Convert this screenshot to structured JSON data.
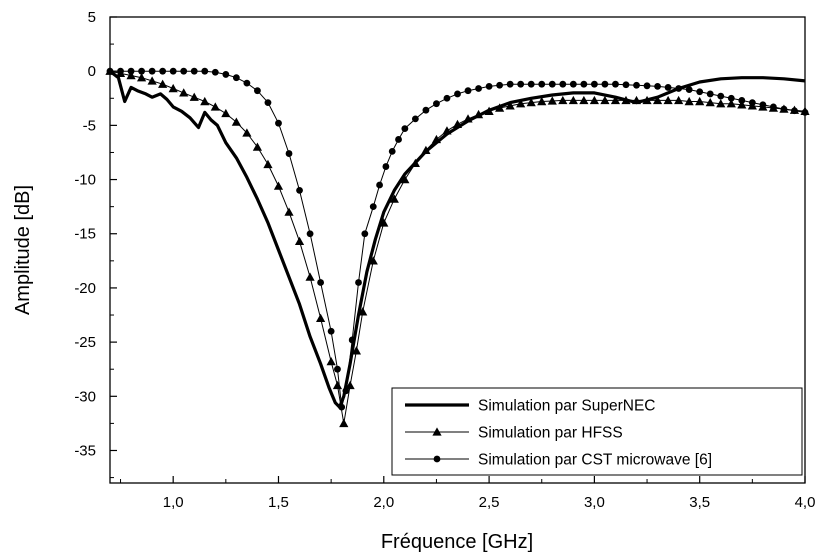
{
  "chart_data": {
    "type": "line",
    "title": "",
    "xlabel": "Fréquence [GHz]",
    "ylabel": "Amplitude [dB]",
    "xlim": [
      0.7,
      4.0
    ],
    "ylim": [
      -38,
      5
    ],
    "x_ticks": [
      1.0,
      1.5,
      2.0,
      2.5,
      3.0,
      3.5,
      4.0
    ],
    "x_tick_labels": [
      "1,0",
      "1,5",
      "2,0",
      "2,5",
      "3,0",
      "3,5",
      "4,0"
    ],
    "y_ticks": [
      5,
      0,
      -5,
      -10,
      -15,
      -20,
      -25,
      -30,
      -35
    ],
    "y_tick_labels": [
      "5",
      "0",
      "-5",
      "-10",
      "-15",
      "-20",
      "-25",
      "-30",
      "-35"
    ],
    "grid": false,
    "legend_position": "bottom-right",
    "series": [
      {
        "name": "Simulation par SuperNEC",
        "color": "#000000",
        "style": "thick-line",
        "marker": "none",
        "x": [
          0.7,
          0.74,
          0.77,
          0.8,
          0.83,
          0.87,
          0.9,
          0.94,
          0.97,
          1.0,
          1.04,
          1.08,
          1.12,
          1.15,
          1.18,
          1.21,
          1.25,
          1.3,
          1.35,
          1.4,
          1.45,
          1.5,
          1.55,
          1.6,
          1.65,
          1.7,
          1.74,
          1.77,
          1.79,
          1.81,
          1.84,
          1.88,
          1.92,
          1.96,
          2.0,
          2.05,
          2.1,
          2.2,
          2.3,
          2.4,
          2.5,
          2.6,
          2.7,
          2.8,
          2.9,
          3.0,
          3.1,
          3.2,
          3.3,
          3.4,
          3.5,
          3.6,
          3.7,
          3.8,
          3.9,
          4.0
        ],
        "values": [
          0.0,
          -0.6,
          -2.8,
          -1.5,
          -1.8,
          -2.1,
          -2.4,
          -2.1,
          -2.6,
          -3.3,
          -3.7,
          -4.3,
          -5.2,
          -3.8,
          -4.5,
          -5.0,
          -6.6,
          -8.0,
          -9.8,
          -11.8,
          -14.0,
          -16.5,
          -19.0,
          -21.5,
          -24.5,
          -27.0,
          -29.2,
          -30.6,
          -31.0,
          -30.0,
          -27.0,
          -22.5,
          -18.5,
          -15.5,
          -13.0,
          -11.0,
          -9.5,
          -7.4,
          -5.8,
          -4.6,
          -3.6,
          -2.9,
          -2.5,
          -2.2,
          -2.0,
          -2.0,
          -2.4,
          -2.9,
          -2.4,
          -1.6,
          -1.0,
          -0.7,
          -0.6,
          -0.6,
          -0.7,
          -0.9
        ]
      },
      {
        "name": "Simulation par HFSS",
        "color": "#000000",
        "style": "thin-line",
        "marker": "triangle",
        "x": [
          0.7,
          0.75,
          0.8,
          0.85,
          0.9,
          0.95,
          1.0,
          1.05,
          1.1,
          1.15,
          1.2,
          1.25,
          1.3,
          1.35,
          1.4,
          1.45,
          1.5,
          1.55,
          1.6,
          1.65,
          1.7,
          1.75,
          1.78,
          1.81,
          1.84,
          1.87,
          1.9,
          1.95,
          2.0,
          2.05,
          2.1,
          2.15,
          2.2,
          2.25,
          2.3,
          2.35,
          2.4,
          2.45,
          2.5,
          2.55,
          2.6,
          2.65,
          2.7,
          2.75,
          2.8,
          2.85,
          2.9,
          2.95,
          3.0,
          3.05,
          3.1,
          3.15,
          3.2,
          3.25,
          3.3,
          3.35,
          3.4,
          3.45,
          3.5,
          3.55,
          3.6,
          3.65,
          3.7,
          3.75,
          3.8,
          3.85,
          3.9,
          3.95,
          4.0
        ],
        "values": [
          0.0,
          -0.2,
          -0.4,
          -0.6,
          -0.9,
          -1.2,
          -1.6,
          -2.0,
          -2.4,
          -2.8,
          -3.3,
          -3.9,
          -4.7,
          -5.7,
          -7.0,
          -8.6,
          -10.6,
          -13.0,
          -15.7,
          -19.0,
          -22.8,
          -26.8,
          -29.0,
          -32.5,
          -29.0,
          -25.8,
          -22.2,
          -17.5,
          -14.0,
          -11.8,
          -10.0,
          -8.5,
          -7.3,
          -6.3,
          -5.5,
          -4.9,
          -4.4,
          -4.0,
          -3.7,
          -3.4,
          -3.2,
          -3.0,
          -2.9,
          -2.8,
          -2.75,
          -2.7,
          -2.7,
          -2.7,
          -2.7,
          -2.7,
          -2.7,
          -2.7,
          -2.7,
          -2.7,
          -2.7,
          -2.7,
          -2.7,
          -2.8,
          -2.8,
          -2.9,
          -3.0,
          -3.0,
          -3.1,
          -3.2,
          -3.3,
          -3.4,
          -3.5,
          -3.6,
          -3.7
        ]
      },
      {
        "name": "Simulation par CST microwave [6]",
        "color": "#000000",
        "style": "thin-line",
        "marker": "circle",
        "x": [
          0.7,
          0.75,
          0.8,
          0.85,
          0.9,
          0.95,
          1.0,
          1.05,
          1.1,
          1.15,
          1.2,
          1.25,
          1.3,
          1.35,
          1.4,
          1.45,
          1.5,
          1.55,
          1.6,
          1.65,
          1.7,
          1.75,
          1.78,
          1.8,
          1.82,
          1.85,
          1.88,
          1.91,
          1.95,
          1.98,
          2.01,
          2.04,
          2.07,
          2.1,
          2.15,
          2.2,
          2.25,
          2.3,
          2.35,
          2.4,
          2.45,
          2.5,
          2.55,
          2.6,
          2.65,
          2.7,
          2.75,
          2.8,
          2.85,
          2.9,
          2.95,
          3.0,
          3.05,
          3.1,
          3.15,
          3.2,
          3.25,
          3.3,
          3.35,
          3.4,
          3.45,
          3.5,
          3.55,
          3.6,
          3.65,
          3.7,
          3.75,
          3.8,
          3.85,
          3.9,
          3.95,
          4.0
        ],
        "values": [
          0.0,
          0.0,
          0.0,
          0.0,
          0.0,
          0.0,
          0.0,
          0.0,
          0.0,
          0.0,
          -0.1,
          -0.3,
          -0.6,
          -1.1,
          -1.8,
          -2.9,
          -4.8,
          -7.6,
          -11.0,
          -15.0,
          -19.5,
          -24.0,
          -27.5,
          -31.0,
          -29.5,
          -24.8,
          -19.5,
          -15.0,
          -12.5,
          -10.5,
          -8.8,
          -7.4,
          -6.3,
          -5.3,
          -4.4,
          -3.6,
          -3.0,
          -2.5,
          -2.1,
          -1.8,
          -1.6,
          -1.4,
          -1.3,
          -1.2,
          -1.2,
          -1.2,
          -1.2,
          -1.2,
          -1.2,
          -1.2,
          -1.2,
          -1.2,
          -1.2,
          -1.2,
          -1.25,
          -1.3,
          -1.35,
          -1.4,
          -1.5,
          -1.6,
          -1.7,
          -1.9,
          -2.1,
          -2.3,
          -2.5,
          -2.7,
          -2.9,
          -3.1,
          -3.3,
          -3.5,
          -3.65,
          -3.8
        ]
      }
    ]
  }
}
